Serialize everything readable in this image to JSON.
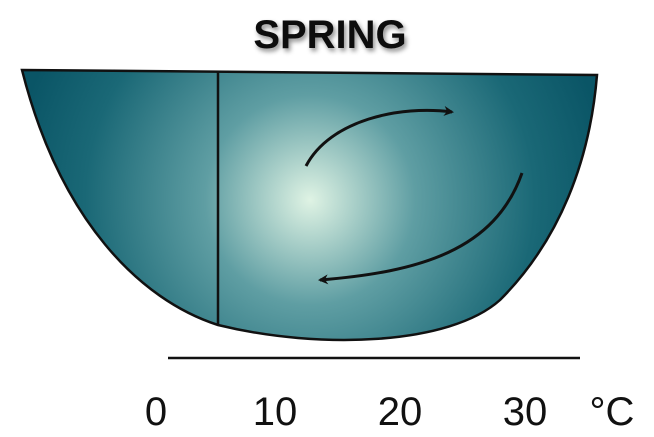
{
  "title": "SPRING",
  "axis": {
    "ticks": [
      "0",
      "10",
      "20",
      "30"
    ],
    "unit": "°C"
  }
}
